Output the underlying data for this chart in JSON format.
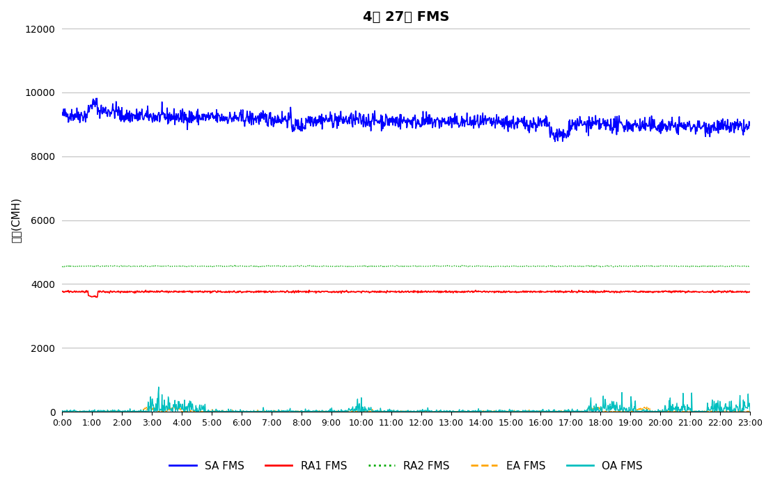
{
  "title": "4월 27일 FMS",
  "ylabel": "풍량(CMH)",
  "ylim": [
    0,
    12000
  ],
  "yticks": [
    0,
    2000,
    4000,
    6000,
    8000,
    10000,
    12000
  ],
  "xtick_labels": [
    "0:00",
    "1:00",
    "2:00",
    "3:00",
    "4:00",
    "5:00",
    "6:00",
    "7:00",
    "8:00",
    "9:00",
    "10:00",
    "11:00",
    "12:00",
    "13:00",
    "14:00",
    "15:00",
    "16:00",
    "17:00",
    "18:00",
    "19:00",
    "20:00",
    "21:00",
    "22:00",
    "23:00"
  ],
  "SA_base": 9250,
  "SA_noise_scale": 120,
  "RA1_base": 3760,
  "RA1_noise_scale": 15,
  "RA2_base": 4560,
  "RA2_noise_scale": 8,
  "SA_color": "#0000FF",
  "RA1_color": "#FF0000",
  "RA2_color": "#00AA00",
  "EA_color": "#FFA500",
  "OA_color": "#00BFBF",
  "background_color": "#FFFFFF",
  "grid_color": "#C0C0C0",
  "title_fontsize": 14,
  "axis_fontsize": 11,
  "legend_fontsize": 11
}
